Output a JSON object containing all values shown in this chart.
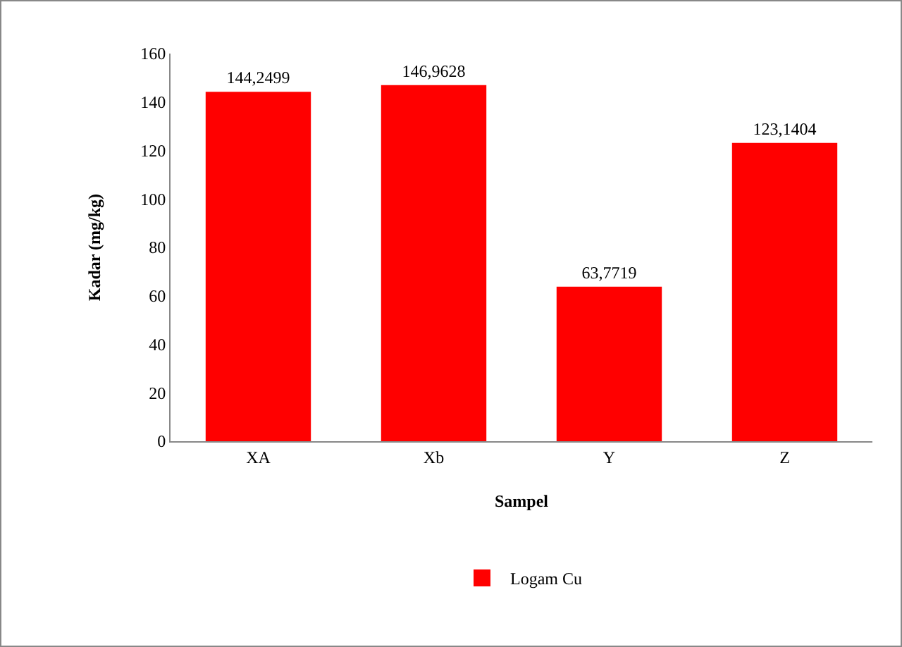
{
  "chart_data": {
    "type": "bar",
    "xlabel": "Sampel",
    "ylabel": "Kadar (mg/kg)",
    "categories": [
      "XA",
      "Xb",
      "Y",
      "Z"
    ],
    "series": [
      {
        "name": "Logam Cu",
        "color": "#ff0000",
        "values": [
          144.2499,
          146.9628,
          63.7719,
          123.1404
        ],
        "value_labels": [
          "144,2499",
          "146,9628",
          "63,7719",
          "123,1404"
        ]
      }
    ],
    "ylim": [
      0,
      160
    ],
    "yticks": [
      0,
      20,
      40,
      60,
      80,
      100,
      120,
      140,
      160
    ],
    "grid": false,
    "legend": "bottom"
  }
}
